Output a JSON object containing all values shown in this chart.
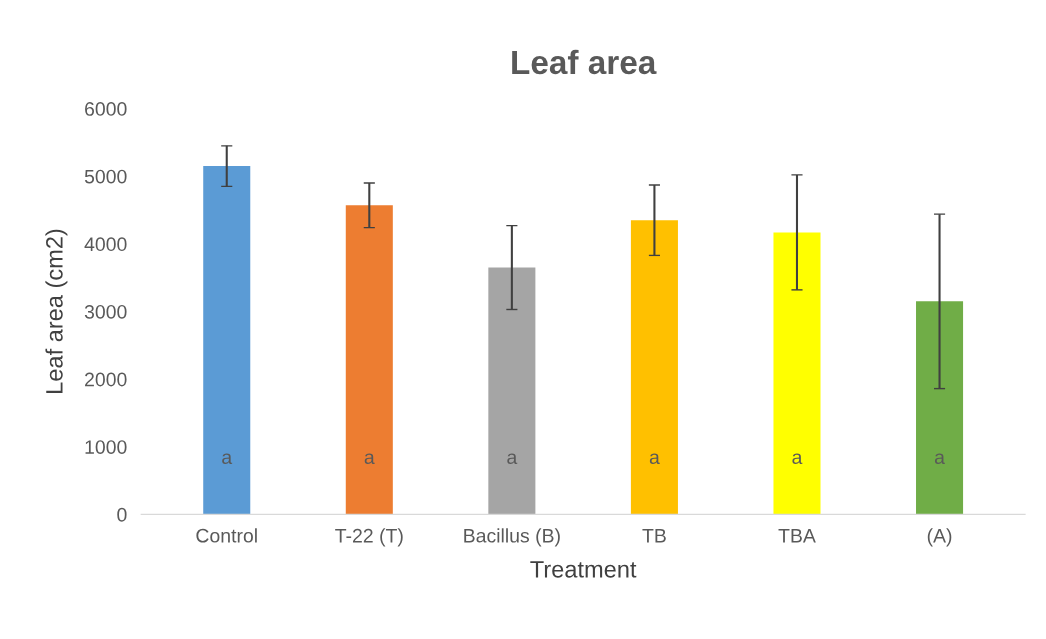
{
  "chart_data": {
    "type": "bar",
    "title": "Leaf area",
    "xlabel": "Treatment",
    "ylabel": "Leaf area (cm2)",
    "categories": [
      "Control",
      "T-22 (T)",
      "Bacillus (B)",
      "TB",
      "TBA",
      "(A)"
    ],
    "values": [
      5150,
      4570,
      3650,
      4350,
      4170,
      3150
    ],
    "errors": [
      300,
      330,
      620,
      520,
      850,
      1290
    ],
    "colors": [
      "#5b9bd5",
      "#ed7d31",
      "#a5a5a5",
      "#ffc000",
      "#ffff00",
      "#70ad47"
    ],
    "ylim": [
      0,
      6000
    ],
    "yticks": [
      0,
      1000,
      2000,
      3000,
      4000,
      5000,
      6000
    ],
    "grid": false,
    "annotations": [
      "a",
      "a",
      "a",
      "a",
      "a",
      "a"
    ]
  }
}
